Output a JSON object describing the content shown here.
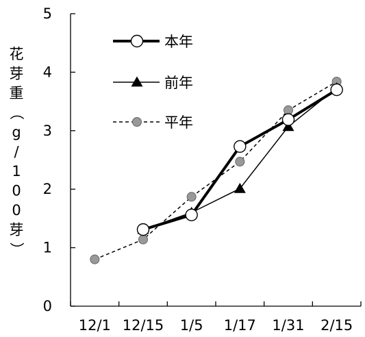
{
  "chart_data": {
    "type": "line",
    "title": "",
    "xlabel": "",
    "ylabel": "花芽重（g/100芽）",
    "ylabel_chars": [
      "花",
      "芽",
      "重",
      "（",
      "g",
      "/",
      "1",
      "0",
      "0",
      "芽",
      "）"
    ],
    "categories": [
      "12/1",
      "12/15",
      "1/5",
      "1/17",
      "1/31",
      "2/15"
    ],
    "ylim": [
      0,
      5
    ],
    "yticks": [
      0,
      1,
      2,
      3,
      4,
      5
    ],
    "grid": false,
    "legend_position": "top-left",
    "series": [
      {
        "name": "本年",
        "style": "thick-solid",
        "marker": "open-circle",
        "color": "#000000",
        "x": [
          1.5,
          2.5,
          3.5,
          4.5,
          5.5
        ],
        "y": [
          1.31,
          1.56,
          2.73,
          3.19,
          3.7
        ]
      },
      {
        "name": "前年",
        "style": "thin-solid",
        "marker": "filled-triangle",
        "color": "#000000",
        "x": [
          1.5,
          2.5,
          3.5,
          4.5,
          5.5
        ],
        "y": [
          1.31,
          1.6,
          2.01,
          3.07,
          3.73
        ]
      },
      {
        "name": "平年",
        "style": "dashed",
        "marker": "gray-circle",
        "color": "#999999",
        "x": [
          0.5,
          1.5,
          2.5,
          3.5,
          4.5,
          5.5
        ],
        "y": [
          0.8,
          1.14,
          1.87,
          2.47,
          3.35,
          3.84
        ]
      }
    ]
  }
}
